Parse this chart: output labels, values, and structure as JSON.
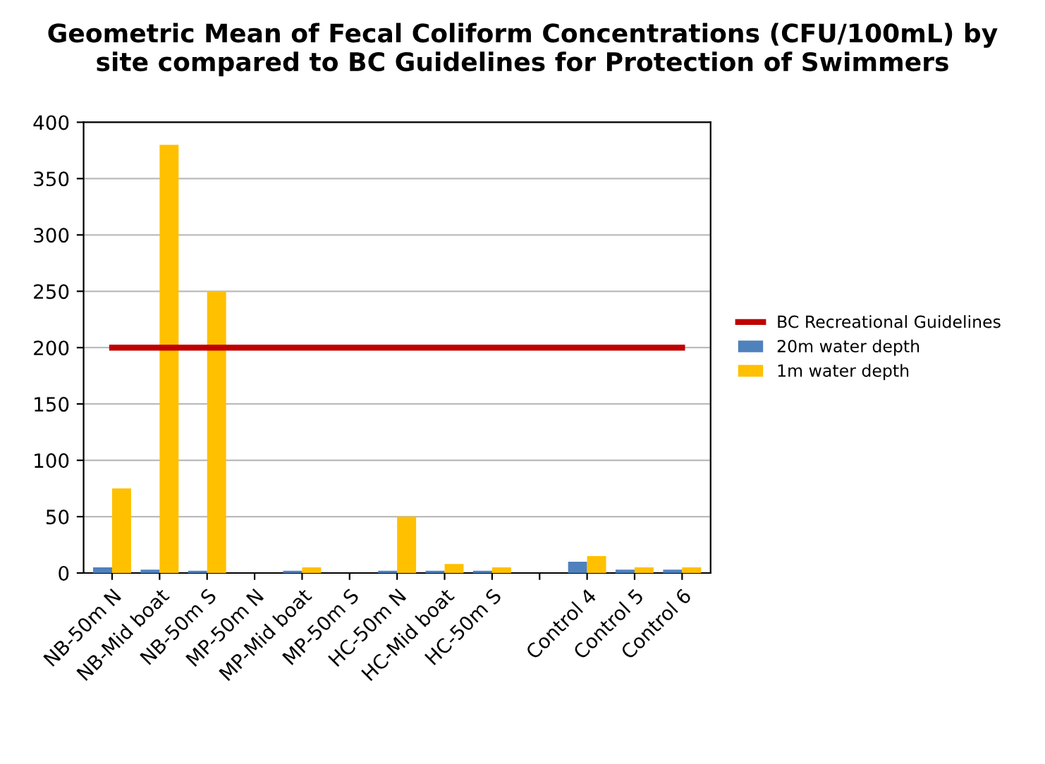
{
  "chart_data": {
    "type": "bar",
    "title": "Geometric Mean of Fecal Coliform Concentrations (CFU/100mL) by\nsite compared to BC Guidelines for Protection of Swimmers",
    "categories": [
      "NB-50m N",
      "NB-Mid boat",
      "NB-50m S",
      "MP-50m N",
      "MP-Mid boat",
      "MP-50m S",
      "HC-50m N",
      "HC-Mid boat",
      "HC-50m S",
      null,
      "Control 4",
      "Control 5",
      "Control 6"
    ],
    "series": [
      {
        "name": "BC Recreational Guidelines",
        "type": "line",
        "color": "#c00000",
        "values": [
          200,
          200,
          200,
          200,
          200,
          200,
          200,
          200,
          200,
          200,
          200,
          200,
          200
        ]
      },
      {
        "name": "20m water depth",
        "color": "#4f81bd",
        "values": [
          5,
          3,
          2,
          null,
          2,
          null,
          2,
          2,
          2,
          null,
          10,
          3,
          3
        ]
      },
      {
        "name": "1m water depth",
        "color": "#ffc000",
        "values": [
          75,
          380,
          250,
          null,
          5,
          null,
          50,
          8,
          5,
          null,
          15,
          5,
          5
        ]
      }
    ],
    "ylim": [
      0,
      400
    ],
    "yticks": [
      0,
      50,
      100,
      150,
      200,
      250,
      300,
      350,
      400
    ],
    "grid": "y",
    "legend": "right"
  }
}
